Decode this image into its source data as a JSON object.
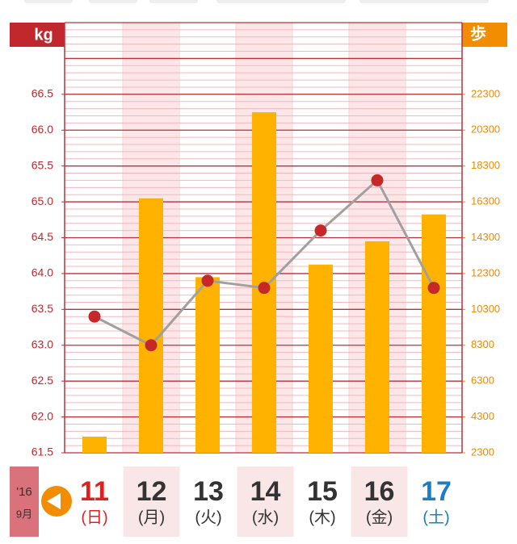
{
  "chart_data": {
    "type": "bar",
    "y_label": "kg",
    "y2_label": "歩",
    "year": "'16",
    "month": "9月",
    "categories": [
      "11",
      "12",
      "13",
      "14",
      "15",
      "16",
      "17"
    ],
    "weekdays": [
      "(日)",
      "(月)",
      "(火)",
      "(水)",
      "(木)",
      "(金)",
      "(土)"
    ],
    "day_colors": [
      "#e02020",
      "#333333",
      "#333333",
      "#333333",
      "#333333",
      "#333333",
      "#1a7fc4"
    ],
    "shaded": [
      false,
      true,
      false,
      true,
      false,
      true,
      false
    ],
    "series": [
      {
        "type": "bar",
        "axis": "y2",
        "color": "#ffb300",
        "values": [
          3200,
          16500,
          12100,
          21300,
          12800,
          14100,
          15600
        ]
      },
      {
        "type": "line",
        "axis": "y",
        "color": "#a0a0a0",
        "marker_color": "#c62828",
        "values": [
          63.4,
          63.0,
          63.9,
          63.8,
          64.6,
          65.3,
          63.8
        ]
      }
    ],
    "ylim": [
      61.5,
      67.5
    ],
    "yticks": [
      {
        "value": 61.5,
        "label": "61.5"
      },
      {
        "value": 62.0,
        "label": "62.0"
      },
      {
        "value": 62.5,
        "label": "62.5"
      },
      {
        "value": 63.0,
        "label": "63.0"
      },
      {
        "value": 63.5,
        "label": "63.5"
      },
      {
        "value": 64.0,
        "label": "64.0"
      },
      {
        "value": 64.5,
        "label": "64.5"
      },
      {
        "value": 65.0,
        "label": "65.0"
      },
      {
        "value": 65.5,
        "label": "65.5"
      },
      {
        "value": 66.0,
        "label": "66.0"
      },
      {
        "value": 66.5,
        "label": "66.5"
      }
    ],
    "y2lim": [
      2300,
      26300
    ],
    "y2ticks": [
      2300,
      4300,
      6300,
      8300,
      10300,
      12300,
      14300,
      16300,
      18300,
      20300,
      22300
    ],
    "grid": true
  }
}
